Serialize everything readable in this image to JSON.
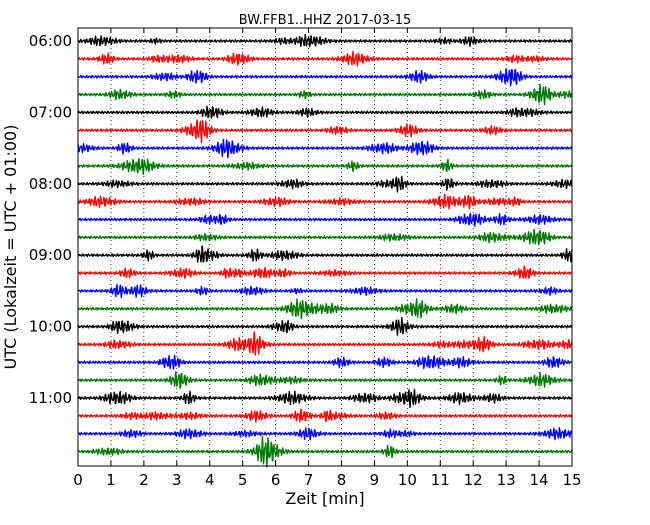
{
  "chart_data": {
    "type": "line",
    "title": "BW.FFB1..HHZ 2017-03-15",
    "xlabel": "Zeit  [min]",
    "ylabel": "UTC (Lokalzeit = UTC + 01:00)",
    "xlim": [
      0,
      15
    ],
    "x_ticks": [
      "0",
      "1",
      "2",
      "3",
      "4",
      "5",
      "6",
      "7",
      "8",
      "9",
      "10",
      "11",
      "12",
      "13",
      "14",
      "15"
    ],
    "y_ticks": [
      "06:00",
      "07:00",
      "08:00",
      "09:00",
      "10:00",
      "11:00"
    ],
    "grid": "vertical dotted",
    "trace_colors": [
      "#000000",
      "#ff0000",
      "#0000ff",
      "#007700"
    ],
    "traces": [
      {
        "start": "06:00"
      },
      {
        "start": "06:15"
      },
      {
        "start": "06:30"
      },
      {
        "start": "06:45"
      },
      {
        "start": "07:00"
      },
      {
        "start": "07:15"
      },
      {
        "start": "07:30"
      },
      {
        "start": "07:45"
      },
      {
        "start": "08:00"
      },
      {
        "start": "08:15"
      },
      {
        "start": "08:30"
      },
      {
        "start": "08:45"
      },
      {
        "start": "09:00"
      },
      {
        "start": "09:15"
      },
      {
        "start": "09:30"
      },
      {
        "start": "09:45"
      },
      {
        "start": "10:00"
      },
      {
        "start": "10:15"
      },
      {
        "start": "10:30"
      },
      {
        "start": "10:45"
      },
      {
        "start": "11:00"
      },
      {
        "start": "11:15"
      },
      {
        "start": "11:30"
      },
      {
        "start": "11:45"
      }
    ]
  }
}
